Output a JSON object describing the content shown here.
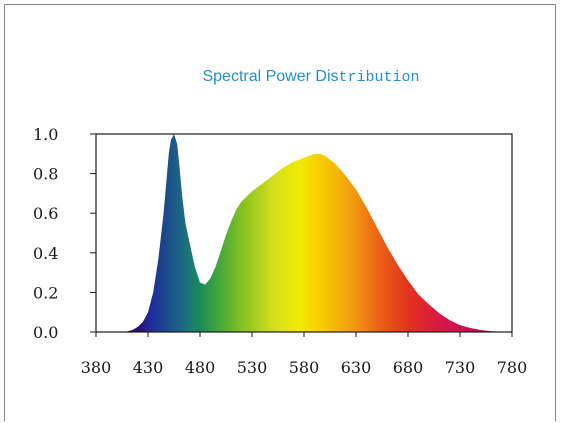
{
  "chart_data": {
    "type": "area",
    "title_parts": [
      "Spectral Power Dis",
      "tribution"
    ],
    "title_color": "#1f8fd1",
    "xlabel": "",
    "ylabel": "",
    "xlim": [
      380,
      780
    ],
    "ylim": [
      0,
      1.0
    ],
    "x_ticks": [
      "380",
      "430",
      "480",
      "530",
      "580",
      "630",
      "680",
      "730",
      "780"
    ],
    "y_ticks": [
      "1.0",
      "0.8",
      "0.6",
      "0.4",
      "0.2",
      "0.0"
    ],
    "grid": false,
    "fill": "visible-spectrum-gradient",
    "series": [
      {
        "x": [
          380,
          400,
          410,
          415,
          420,
          425,
          430,
          435,
          440,
          445,
          448,
          450,
          452,
          455,
          458,
          460,
          463,
          466,
          470,
          475,
          480,
          485,
          490,
          495,
          500,
          505,
          510,
          515,
          520,
          530,
          540,
          550,
          560,
          570,
          580,
          590,
          595,
          600,
          610,
          620,
          630,
          640,
          650,
          660,
          670,
          680,
          690,
          700,
          710,
          720,
          730,
          740,
          750,
          760,
          770,
          780
        ],
        "y": [
          0.0,
          0.0,
          0.003,
          0.01,
          0.025,
          0.05,
          0.1,
          0.2,
          0.37,
          0.6,
          0.78,
          0.9,
          0.97,
          1.0,
          0.95,
          0.85,
          0.68,
          0.55,
          0.45,
          0.33,
          0.25,
          0.24,
          0.27,
          0.33,
          0.41,
          0.49,
          0.56,
          0.62,
          0.66,
          0.71,
          0.75,
          0.79,
          0.83,
          0.86,
          0.88,
          0.9,
          0.9,
          0.89,
          0.85,
          0.79,
          0.72,
          0.63,
          0.53,
          0.43,
          0.34,
          0.26,
          0.19,
          0.14,
          0.095,
          0.06,
          0.035,
          0.02,
          0.01,
          0.004,
          0.001,
          0.0
        ]
      }
    ]
  }
}
